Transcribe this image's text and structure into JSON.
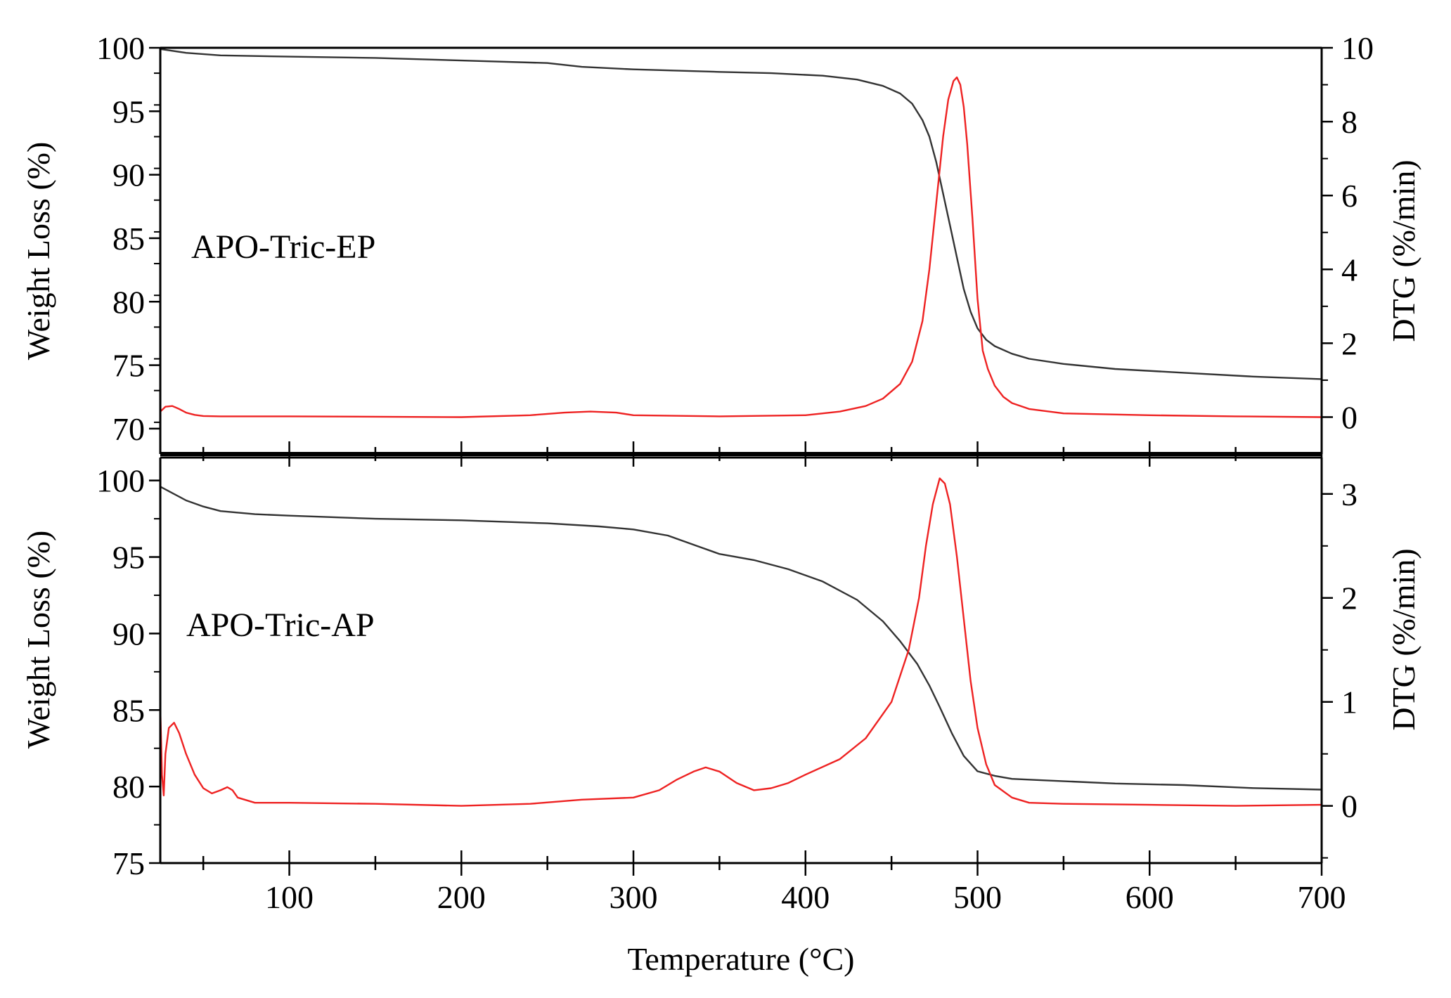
{
  "chart_data": [
    {
      "type": "line",
      "panel": "top",
      "annotation": "APO-Tric-EP",
      "xlabel": "Temperature (°C)",
      "ylabel_left": "Weight Loss (%)",
      "ylabel_right": "DTG (%/min)",
      "xlim": [
        25,
        700
      ],
      "ylim_left": [
        68,
        100
      ],
      "ylim_right": [
        -1,
        10
      ],
      "y_left_ticks": [
        70,
        75,
        80,
        85,
        90,
        95,
        100
      ],
      "y_right_ticks": [
        0,
        2,
        4,
        6,
        8,
        10
      ],
      "series": [
        {
          "name": "Weight Loss",
          "axis": "left",
          "color": "#333333",
          "x": [
            25,
            40,
            60,
            100,
            150,
            200,
            250,
            270,
            300,
            350,
            380,
            410,
            430,
            445,
            455,
            462,
            468,
            472,
            476,
            480,
            484,
            488,
            492,
            496,
            500,
            505,
            510,
            520,
            530,
            550,
            580,
            620,
            660,
            700
          ],
          "y": [
            99.9,
            99.6,
            99.4,
            99.3,
            99.2,
            99.0,
            98.8,
            98.5,
            98.3,
            98.1,
            98.0,
            97.8,
            97.5,
            97.0,
            96.4,
            95.6,
            94.3,
            93.0,
            91.0,
            88.5,
            86.0,
            83.5,
            81.0,
            79.2,
            77.9,
            77.0,
            76.5,
            75.9,
            75.5,
            75.1,
            74.7,
            74.4,
            74.1,
            73.9
          ]
        },
        {
          "name": "DTG",
          "axis": "right",
          "color": "#ee2222",
          "x": [
            25,
            28,
            32,
            36,
            40,
            45,
            50,
            60,
            100,
            150,
            200,
            240,
            260,
            275,
            290,
            300,
            350,
            400,
            420,
            435,
            445,
            455,
            462,
            468,
            472,
            476,
            480,
            483,
            486,
            488,
            490,
            492,
            494,
            497,
            500,
            503,
            506,
            510,
            515,
            520,
            530,
            550,
            600,
            650,
            700
          ],
          "y": [
            0.15,
            0.28,
            0.3,
            0.22,
            0.12,
            0.06,
            0.03,
            0.02,
            0.02,
            0.01,
            0.0,
            0.05,
            0.12,
            0.15,
            0.12,
            0.05,
            0.02,
            0.05,
            0.15,
            0.3,
            0.5,
            0.9,
            1.5,
            2.6,
            4.0,
            5.8,
            7.6,
            8.6,
            9.1,
            9.2,
            9.0,
            8.4,
            7.4,
            5.4,
            3.2,
            1.8,
            1.3,
            0.85,
            0.55,
            0.38,
            0.22,
            0.1,
            0.05,
            0.02,
            0.0
          ]
        }
      ]
    },
    {
      "type": "line",
      "panel": "bottom",
      "annotation": "APO-Tric-AP",
      "xlabel": "Temperature (°C)",
      "ylabel_left": "Weight Loss (%)",
      "ylabel_right": "DTG (%/min)",
      "xlim": [
        25,
        700
      ],
      "ylim_left": [
        75,
        101.5
      ],
      "ylim_right": [
        -0.55,
        3.35
      ],
      "x_ticks": [
        100,
        200,
        300,
        400,
        500,
        600,
        700
      ],
      "y_left_ticks": [
        75,
        80,
        85,
        90,
        95,
        100
      ],
      "y_right_ticks": [
        0,
        1,
        2,
        3
      ],
      "series": [
        {
          "name": "Weight Loss",
          "axis": "left",
          "color": "#333333",
          "x": [
            25,
            30,
            40,
            50,
            60,
            80,
            100,
            150,
            200,
            250,
            280,
            300,
            320,
            335,
            350,
            370,
            390,
            410,
            430,
            445,
            455,
            465,
            472,
            478,
            485,
            492,
            500,
            510,
            520,
            540,
            580,
            620,
            660,
            700
          ],
          "y": [
            99.6,
            99.3,
            98.7,
            98.3,
            98.0,
            97.8,
            97.7,
            97.5,
            97.4,
            97.2,
            97.0,
            96.8,
            96.4,
            95.8,
            95.2,
            94.8,
            94.2,
            93.4,
            92.2,
            90.8,
            89.5,
            88.0,
            86.6,
            85.2,
            83.5,
            82.0,
            81.0,
            80.7,
            80.5,
            80.4,
            80.2,
            80.1,
            79.9,
            79.8
          ]
        },
        {
          "name": "DTG",
          "axis": "right",
          "color": "#ee2222",
          "x": [
            25,
            26,
            27,
            28,
            30,
            33,
            36,
            40,
            45,
            50,
            55,
            60,
            64,
            67,
            70,
            80,
            100,
            150,
            200,
            240,
            270,
            300,
            315,
            325,
            335,
            342,
            350,
            360,
            370,
            380,
            390,
            400,
            420,
            435,
            450,
            460,
            466,
            470,
            474,
            478,
            481,
            484,
            488,
            492,
            496,
            500,
            505,
            510,
            520,
            530,
            550,
            600,
            650,
            700
          ],
          "y": [
            0.95,
            0.3,
            0.1,
            0.5,
            0.75,
            0.8,
            0.7,
            0.5,
            0.3,
            0.17,
            0.12,
            0.15,
            0.18,
            0.15,
            0.08,
            0.03,
            0.03,
            0.02,
            0.0,
            0.02,
            0.06,
            0.08,
            0.15,
            0.25,
            0.33,
            0.37,
            0.33,
            0.22,
            0.15,
            0.17,
            0.22,
            0.3,
            0.45,
            0.65,
            1.0,
            1.5,
            2.0,
            2.5,
            2.9,
            3.15,
            3.1,
            2.9,
            2.4,
            1.8,
            1.2,
            0.75,
            0.4,
            0.2,
            0.08,
            0.03,
            0.02,
            0.01,
            0.0,
            0.01
          ]
        }
      ]
    }
  ]
}
